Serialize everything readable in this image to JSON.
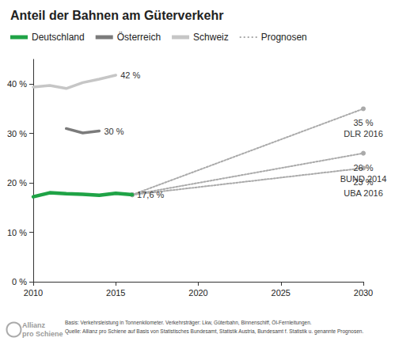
{
  "chart_data": {
    "type": "line",
    "title": "Anteil der Bahnen am Güterverkehr",
    "xlim": [
      2010,
      2030
    ],
    "xticks": [
      2010,
      2015,
      2020,
      2025,
      2030
    ],
    "ylim": [
      0,
      45
    ],
    "yticks": [
      {
        "value": 0,
        "label": "0 %"
      },
      {
        "value": 10,
        "label": "10 %"
      },
      {
        "value": 20,
        "label": "20 %"
      },
      {
        "value": 30,
        "label": "30 %"
      },
      {
        "value": 40,
        "label": "40 %"
      }
    ],
    "grid": false,
    "legend": "top-left",
    "series": [
      {
        "name": "Deutschland",
        "color": "#1fa346",
        "line_style": "solid",
        "x": [
          2010,
          2011,
          2012,
          2013,
          2014,
          2015,
          2016
        ],
        "values": [
          17.2,
          18.0,
          17.8,
          17.7,
          17.5,
          17.9,
          17.6
        ],
        "value_labels": [
          null,
          null,
          null,
          null,
          null,
          null,
          "17,6 %"
        ]
      },
      {
        "name": "Österreich",
        "color": "#7b7b7b",
        "line_style": "solid",
        "x": [
          2012,
          2013,
          2014
        ],
        "values": [
          31.0,
          30.1,
          30.5
        ],
        "value_labels": [
          null,
          null,
          "30 %"
        ]
      },
      {
        "name": "Schweiz",
        "color": "#c6c6c6",
        "line_style": "solid",
        "x": [
          2010,
          2011,
          2012,
          2013,
          2014,
          2015
        ],
        "values": [
          39.4,
          39.7,
          39.1,
          40.3,
          41.0,
          41.8
        ],
        "value_labels": [
          null,
          null,
          null,
          null,
          null,
          "42 %"
        ]
      },
      {
        "name": "Prognosen",
        "color": "#aaaaaa",
        "line_style": "dotted",
        "marker": "circle",
        "label": "DLR 2016",
        "x": [
          2016,
          2030
        ],
        "values": [
          17.6,
          35
        ],
        "value_labels": [
          null,
          "35 %"
        ]
      },
      {
        "name": "Prognosen",
        "color": "#aaaaaa",
        "line_style": "dotted",
        "marker": "circle",
        "label": "BUND 2014",
        "x": [
          2016,
          2030
        ],
        "values": [
          17.6,
          26
        ],
        "value_labels": [
          null,
          "26 %"
        ]
      },
      {
        "name": "Prognosen",
        "color": "#aaaaaa",
        "line_style": "dotted",
        "marker": "circle",
        "label": "UBA 2016",
        "x": [
          2016,
          2030
        ],
        "values": [
          17.6,
          23
        ],
        "value_labels": [
          null,
          "23 %"
        ]
      }
    ],
    "notes": [
      "Basis: Verkehrsleistung in Tonnenkilometer. Verkehrsträger: Lkw, Güterbahn, Binnenschiff, Öl-Fernleitungen.",
      "Quelle: Allianz pro Schiene auf Basis von Statistisches Bundesamt, Statistik Austria, Bundesamt f. Statistik u. genannte Prognosen."
    ],
    "logo": [
      "Allianz",
      "pro Schiene"
    ]
  }
}
